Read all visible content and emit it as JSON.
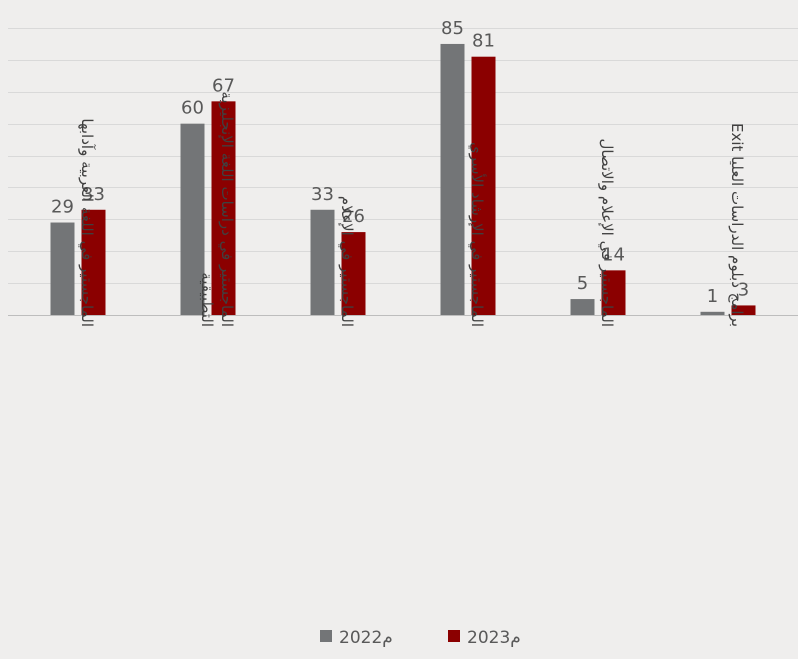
{
  "chart_data": {
    "type": "bar",
    "categories": [
      [
        "الماجستير في اللغة العربية وآدابها"
      ],
      [
        "الماجستير في دراسات اللغة الإنجليزية",
        "التطبيقية"
      ],
      [
        "الماجستير في الإعلام"
      ],
      [
        "الماجستير في الإرشاد الأسري"
      ],
      [
        "الماجستير في الإعلام والاتصال"
      ],
      [
        "برامج  دبلوم الدراسات العليا Exit"
      ]
    ],
    "series": [
      {
        "name": "2022م",
        "values": [
          29,
          60,
          33,
          85,
          5,
          1
        ],
        "color": "#737577"
      },
      {
        "name": "2023م",
        "values": [
          33,
          67,
          26,
          81,
          14,
          3
        ],
        "color": "#8b0000"
      }
    ],
    "ylim": [
      0,
      90
    ],
    "grid": true,
    "legend": "bottom-center"
  }
}
